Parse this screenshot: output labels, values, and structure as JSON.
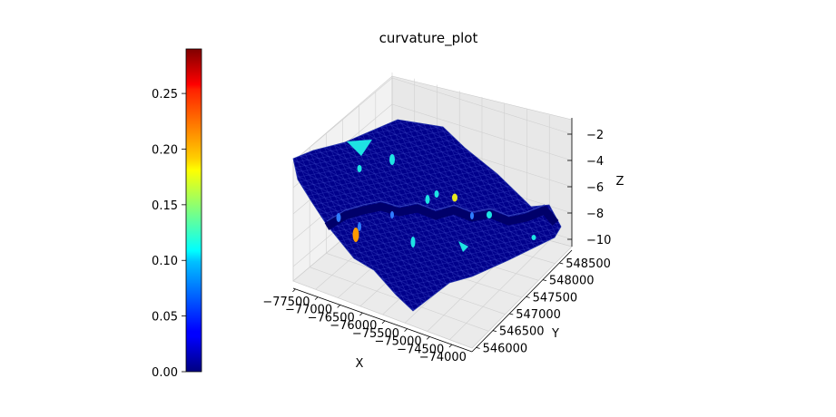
{
  "chart_data": {
    "type": "surface3d",
    "title": "curvature_plot",
    "xlabel": "X",
    "ylabel": "Y",
    "zlabel": "Z",
    "x_ticks": [
      "−77500",
      "−77000",
      "−76500",
      "−76000",
      "−75500",
      "−75000",
      "−74500",
      "−74000"
    ],
    "y_ticks": [
      "546000",
      "546500",
      "547000",
      "547500",
      "548000",
      "548500"
    ],
    "z_ticks": [
      "−2",
      "−4",
      "−6",
      "−8",
      "−10"
    ],
    "xlim": [
      -77700,
      -73900
    ],
    "ylim": [
      545900,
      548900
    ],
    "zlim": [
      -11,
      -1.5
    ],
    "grid": true,
    "colorbar": {
      "colormap": "jet",
      "range": [
        0.0,
        0.29
      ],
      "ticks": [
        "0.00",
        "0.05",
        "0.10",
        "0.15",
        "0.20",
        "0.25"
      ],
      "tick_values": [
        0.0,
        0.05,
        0.1,
        0.15,
        0.2,
        0.25
      ]
    },
    "surface_colors": {
      "dominant": "#00008b",
      "edge": "#4d5fcc",
      "highlights": [
        "#1ee3e3",
        "#e8e81e",
        "#ff9a00",
        "#2f7cff"
      ]
    }
  }
}
